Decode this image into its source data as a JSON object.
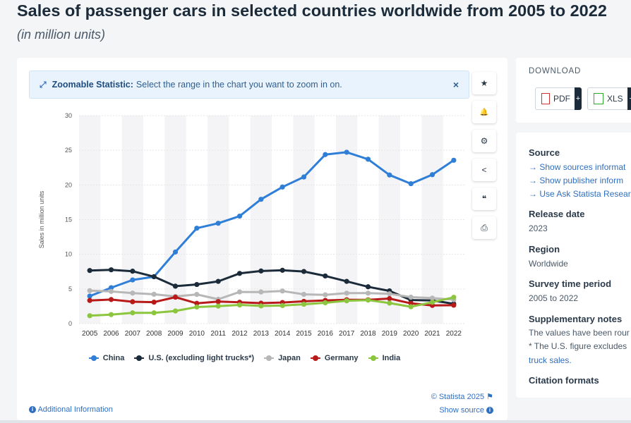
{
  "title": "Sales of passenger cars in selected countries worldwide from 2005 to 2022",
  "subtitle": "(in million units)",
  "zoom_banner": {
    "bold": "Zoomable Statistic:",
    "text": "Select the range in the chart you want to zoom in on.",
    "close": "×"
  },
  "tools": [
    {
      "name": "star-icon",
      "glyph": "★"
    },
    {
      "name": "bell-icon",
      "glyph": "🔔"
    },
    {
      "name": "gear-icon",
      "glyph": "⚙"
    },
    {
      "name": "share-icon",
      "glyph": "<"
    },
    {
      "name": "quote-icon",
      "glyph": "❝"
    },
    {
      "name": "print-icon",
      "glyph": "⎙"
    }
  ],
  "credit": "© Statista 2025",
  "additional_info": "Additional Information",
  "show_source": "Show source",
  "download": {
    "title": "DOWNLOAD",
    "pdf": "PDF",
    "xls": "XLS",
    "plus": "+"
  },
  "meta": {
    "source_h": "Source",
    "source_links": [
      "Show sources informat",
      "Show publisher inform",
      "Use Ask Statista Resear"
    ],
    "release_h": "Release date",
    "release_v": "2023",
    "region_h": "Region",
    "region_v": "Worldwide",
    "period_h": "Survey time period",
    "period_v": "2005 to 2022",
    "supp_h": "Supplementary notes",
    "supp_lines": [
      "The values have been rour",
      "* The U.S. figure excludes"
    ],
    "supp_link": "truck sales.",
    "citation_h": "Citation formats"
  },
  "chart_data": {
    "type": "line",
    "ylabel": "Sales in million units",
    "ylim": [
      0,
      30
    ],
    "yticks": [
      "0",
      "5",
      "10",
      "15",
      "20",
      "25",
      "30"
    ],
    "x": [
      "2005",
      "2006",
      "2007",
      "2008",
      "2009",
      "2010",
      "2011",
      "2012",
      "2013",
      "2014",
      "2015",
      "2016",
      "2017",
      "2018",
      "2019",
      "2020",
      "2021",
      "2022"
    ],
    "series": [
      {
        "name": "China",
        "color": "#2f7ed8",
        "values": [
          3.97,
          5.18,
          6.3,
          6.76,
          10.33,
          13.76,
          14.47,
          15.5,
          17.93,
          19.7,
          21.15,
          24.38,
          24.72,
          23.71,
          21.44,
          20.18,
          21.48,
          23.56
        ]
      },
      {
        "name": "U.S. (excluding light trucks*)",
        "color": "#1c2b3a",
        "values": [
          7.66,
          7.76,
          7.56,
          6.77,
          5.4,
          5.64,
          6.09,
          7.24,
          7.59,
          7.69,
          7.52,
          6.87,
          6.09,
          5.31,
          4.72,
          3.4,
          3.35,
          2.86
        ]
      },
      {
        "name": "Japan",
        "color": "#b7b7b7",
        "values": [
          4.75,
          4.64,
          4.4,
          4.23,
          3.92,
          4.21,
          3.51,
          4.57,
          4.56,
          4.7,
          4.22,
          4.15,
          4.39,
          4.39,
          4.3,
          3.81,
          3.68,
          3.45
        ]
      },
      {
        "name": "Germany",
        "color": "#b81a1a",
        "values": [
          3.34,
          3.47,
          3.15,
          3.09,
          3.81,
          2.92,
          3.17,
          3.08,
          2.95,
          3.04,
          3.21,
          3.35,
          3.44,
          3.44,
          3.61,
          2.92,
          2.62,
          2.65
        ]
      },
      {
        "name": "India",
        "color": "#8cc63f",
        "values": [
          1.14,
          1.3,
          1.55,
          1.55,
          1.82,
          2.39,
          2.52,
          2.69,
          2.55,
          2.6,
          2.79,
          3.0,
          3.29,
          3.39,
          2.96,
          2.43,
          3.08,
          3.79
        ]
      }
    ]
  }
}
